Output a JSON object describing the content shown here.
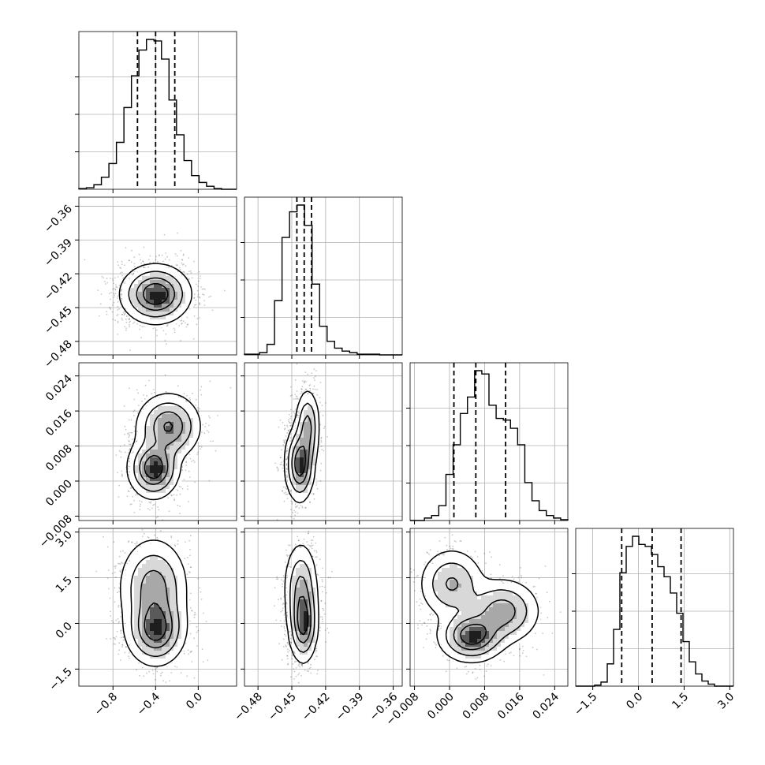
{
  "chart_data": {
    "type": "corner",
    "note_type": "histogram-and-contour",
    "grid": true,
    "colors": {
      "line": "#000000",
      "grid": "#b0b0b0",
      "density": "#000000",
      "background": "#ffffff"
    },
    "parameters": [
      {
        "range": [
          -1.12,
          0.36
        ],
        "ticks": [
          -0.8,
          -0.4,
          0.0
        ],
        "tick_labels": [
          "−0.8",
          "−0.4",
          "0.0"
        ],
        "quantiles": [
          -0.57,
          -0.4,
          -0.22
        ]
      },
      {
        "range": [
          -0.492,
          -0.352
        ],
        "ticks": [
          -0.48,
          -0.45,
          -0.42,
          -0.39,
          -0.36
        ],
        "tick_labels": [
          "−0.48",
          "−0.45",
          "−0.42",
          "−0.39",
          "−0.36"
        ],
        "quantiles": [
          -0.4455,
          -0.439,
          -0.4325
        ]
      },
      {
        "range": [
          -0.009,
          0.027
        ],
        "ticks": [
          -0.008,
          0.0,
          0.008,
          0.016,
          0.024
        ],
        "tick_labels": [
          "−0.008",
          "0.000",
          "0.008",
          "0.016",
          "0.024"
        ],
        "quantiles": [
          0.001,
          0.006,
          0.0128
        ]
      },
      {
        "range": [
          -2.06,
          3.12
        ],
        "ticks": [
          -1.5,
          0.0,
          1.5,
          3.0
        ],
        "tick_labels": [
          "−1.5",
          "0.0",
          "1.5",
          "3.0"
        ],
        "quantiles": [
          -0.55,
          0.45,
          1.4
        ]
      }
    ],
    "histograms": [
      [
        1,
        2,
        6,
        16,
        34,
        62,
        108,
        150,
        184,
        198,
        196,
        172,
        118,
        72,
        38,
        18,
        9,
        4,
        1,
        0,
        0
      ],
      [
        1,
        1,
        3,
        14,
        72,
        156,
        190,
        199,
        172,
        94,
        38,
        18,
        9,
        5,
        3,
        1,
        1,
        1,
        0,
        0,
        0
      ],
      [
        0,
        0,
        3,
        6,
        18,
        56,
        92,
        130,
        150,
        182,
        178,
        140,
        124,
        122,
        112,
        92,
        46,
        24,
        12,
        6,
        3,
        1
      ],
      [
        0,
        0,
        0,
        1,
        4,
        22,
        56,
        112,
        138,
        148,
        140,
        138,
        130,
        118,
        108,
        92,
        72,
        44,
        24,
        12,
        5,
        2,
        0,
        0,
        0
      ]
    ],
    "pairs": [
      {
        "x": 0,
        "y": 1,
        "components": [
          {
            "x": -0.4,
            "y": -0.438,
            "sx": 0.15,
            "sy": 0.012,
            "w": 1.0
          }
        ]
      },
      {
        "x": 0,
        "y": 2,
        "components": [
          {
            "x": -0.42,
            "y": 0.003,
            "sx": 0.11,
            "sy": 0.0032,
            "w": 0.7
          },
          {
            "x": -0.28,
            "y": 0.0125,
            "sx": 0.14,
            "sy": 0.0035,
            "w": 0.55
          }
        ]
      },
      {
        "x": 1,
        "y": 2,
        "components": [
          {
            "x": -0.443,
            "y": 0.004,
            "sx": 0.006,
            "sy": 0.004,
            "w": 0.9
          },
          {
            "x": -0.436,
            "y": 0.0125,
            "sx": 0.005,
            "sy": 0.004,
            "w": 0.55
          }
        ]
      },
      {
        "x": 0,
        "y": 3,
        "components": [
          {
            "x": -0.4,
            "y": -0.2,
            "sx": 0.13,
            "sy": 0.55,
            "w": 0.75
          },
          {
            "x": -0.42,
            "y": 1.2,
            "sx": 0.15,
            "sy": 0.75,
            "w": 0.55
          }
        ]
      },
      {
        "x": 1,
        "y": 3,
        "components": [
          {
            "x": -0.44,
            "y": 0.0,
            "sx": 0.006,
            "sy": 0.6,
            "w": 0.8
          },
          {
            "x": -0.442,
            "y": 1.2,
            "sx": 0.007,
            "sy": 0.7,
            "w": 0.5
          }
        ]
      },
      {
        "x": 2,
        "y": 3,
        "components": [
          {
            "x": 0.005,
            "y": -0.4,
            "sx": 0.0035,
            "sy": 0.4,
            "w": 0.8
          },
          {
            "x": 0.012,
            "y": 0.4,
            "sx": 0.004,
            "sy": 0.5,
            "w": 0.55
          },
          {
            "x": 0.0005,
            "y": 1.3,
            "sx": 0.0035,
            "sy": 0.55,
            "w": 0.45
          }
        ]
      }
    ]
  }
}
